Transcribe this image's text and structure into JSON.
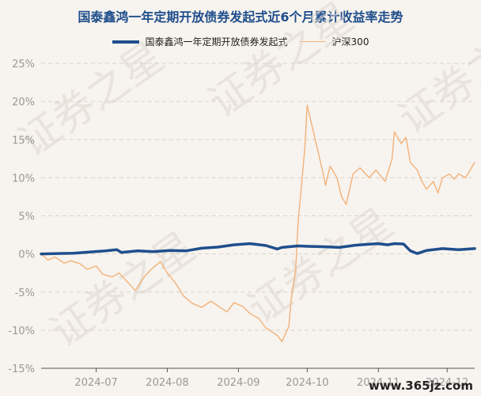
{
  "chart_data": {
    "type": "line",
    "title": "国泰鑫鸿一年定期开放债券发起式近6个月累计收益率走势",
    "legend_position": "top",
    "grid": true,
    "ylim": [
      -15,
      25
    ],
    "yticks": [
      "25%",
      "20%",
      "15%",
      "10%",
      "5%",
      "0%",
      "-5%",
      "-10%",
      "-15%"
    ],
    "ytick_values": [
      25,
      20,
      15,
      10,
      5,
      0,
      -5,
      -10,
      -15
    ],
    "xticks": [
      "2024-07",
      "2024-08",
      "2024-09",
      "2024-10",
      "2024-11",
      "2024-12"
    ],
    "x_range": [
      "2024-06-07",
      "2024-12-13"
    ],
    "series": [
      {
        "name": "国泰鑫鸿一年定期开放债券发起式",
        "color": "#1f4e8c",
        "points": [
          [
            "2024-06-07",
            0.0
          ],
          [
            "2024-06-14",
            0.05
          ],
          [
            "2024-06-21",
            0.1
          ],
          [
            "2024-06-28",
            0.25
          ],
          [
            "2024-07-05",
            0.4
          ],
          [
            "2024-07-10",
            0.55
          ],
          [
            "2024-07-12",
            0.2
          ],
          [
            "2024-07-19",
            0.4
          ],
          [
            "2024-07-26",
            0.3
          ],
          [
            "2024-08-02",
            0.45
          ],
          [
            "2024-08-09",
            0.4
          ],
          [
            "2024-08-16",
            0.75
          ],
          [
            "2024-08-23",
            0.9
          ],
          [
            "2024-08-30",
            1.2
          ],
          [
            "2024-09-06",
            1.35
          ],
          [
            "2024-09-13",
            1.1
          ],
          [
            "2024-09-18",
            0.65
          ],
          [
            "2024-09-20",
            0.85
          ],
          [
            "2024-09-27",
            1.05
          ],
          [
            "2024-10-01",
            1.0
          ],
          [
            "2024-10-08",
            0.95
          ],
          [
            "2024-10-15",
            0.85
          ],
          [
            "2024-10-22",
            1.15
          ],
          [
            "2024-10-29",
            1.3
          ],
          [
            "2024-11-01",
            1.35
          ],
          [
            "2024-11-05",
            1.2
          ],
          [
            "2024-11-08",
            1.35
          ],
          [
            "2024-11-12",
            1.3
          ],
          [
            "2024-11-15",
            0.4
          ],
          [
            "2024-11-18",
            0.05
          ],
          [
            "2024-11-22",
            0.45
          ],
          [
            "2024-11-29",
            0.7
          ],
          [
            "2024-12-06",
            0.55
          ],
          [
            "2024-12-13",
            0.7
          ]
        ]
      },
      {
        "name": "沪深300",
        "color": "#f2b27a",
        "points": [
          [
            "2024-06-07",
            0.0
          ],
          [
            "2024-06-10",
            -0.8
          ],
          [
            "2024-06-13",
            -0.4
          ],
          [
            "2024-06-17",
            -1.2
          ],
          [
            "2024-06-20",
            -0.9
          ],
          [
            "2024-06-24",
            -1.3
          ],
          [
            "2024-06-27",
            -2.0
          ],
          [
            "2024-07-01",
            -1.6
          ],
          [
            "2024-07-04",
            -2.7
          ],
          [
            "2024-07-08",
            -3.0
          ],
          [
            "2024-07-11",
            -2.5
          ],
          [
            "2024-07-15",
            -3.8
          ],
          [
            "2024-07-18",
            -4.8
          ],
          [
            "2024-07-22",
            -3.0
          ],
          [
            "2024-07-25",
            -2.0
          ],
          [
            "2024-07-29",
            -1.0
          ],
          [
            "2024-08-01",
            -2.5
          ],
          [
            "2024-08-05",
            -4.0
          ],
          [
            "2024-08-08",
            -5.5
          ],
          [
            "2024-08-12",
            -6.5
          ],
          [
            "2024-08-16",
            -7.0
          ],
          [
            "2024-08-20",
            -6.2
          ],
          [
            "2024-08-23",
            -6.8
          ],
          [
            "2024-08-27",
            -7.6
          ],
          [
            "2024-08-30",
            -6.4
          ],
          [
            "2024-09-03",
            -6.9
          ],
          [
            "2024-09-06",
            -7.8
          ],
          [
            "2024-09-10",
            -8.5
          ],
          [
            "2024-09-13",
            -9.7
          ],
          [
            "2024-09-18",
            -10.7
          ],
          [
            "2024-09-20",
            -11.5
          ],
          [
            "2024-09-23",
            -9.5
          ],
          [
            "2024-09-24",
            -6.0
          ],
          [
            "2024-09-26",
            -2.0
          ],
          [
            "2024-09-27",
            4.0
          ],
          [
            "2024-09-30",
            14.0
          ],
          [
            "2024-10-01",
            19.5
          ],
          [
            "2024-10-08",
            10.5
          ],
          [
            "2024-10-09",
            9.0
          ],
          [
            "2024-10-11",
            11.5
          ],
          [
            "2024-10-14",
            10.0
          ],
          [
            "2024-10-16",
            7.5
          ],
          [
            "2024-10-18",
            6.5
          ],
          [
            "2024-10-21",
            10.5
          ],
          [
            "2024-10-24",
            11.3
          ],
          [
            "2024-10-28",
            10.0
          ],
          [
            "2024-10-31",
            11.0
          ],
          [
            "2024-11-04",
            9.5
          ],
          [
            "2024-11-07",
            12.5
          ],
          [
            "2024-11-08",
            16.0
          ],
          [
            "2024-11-11",
            14.5
          ],
          [
            "2024-11-13",
            15.3
          ],
          [
            "2024-11-15",
            12.0
          ],
          [
            "2024-11-18",
            11.0
          ],
          [
            "2024-11-20",
            9.5
          ],
          [
            "2024-11-22",
            8.5
          ],
          [
            "2024-11-25",
            9.5
          ],
          [
            "2024-11-27",
            8.0
          ],
          [
            "2024-11-29",
            10.0
          ],
          [
            "2024-12-02",
            10.5
          ],
          [
            "2024-12-04",
            9.8
          ],
          [
            "2024-12-06",
            10.5
          ],
          [
            "2024-12-09",
            10.0
          ],
          [
            "2024-12-11",
            11.0
          ],
          [
            "2024-12-13",
            12.0
          ]
        ]
      }
    ]
  },
  "watermark": {
    "text": "证券之星",
    "site": "www.365jz.com"
  }
}
